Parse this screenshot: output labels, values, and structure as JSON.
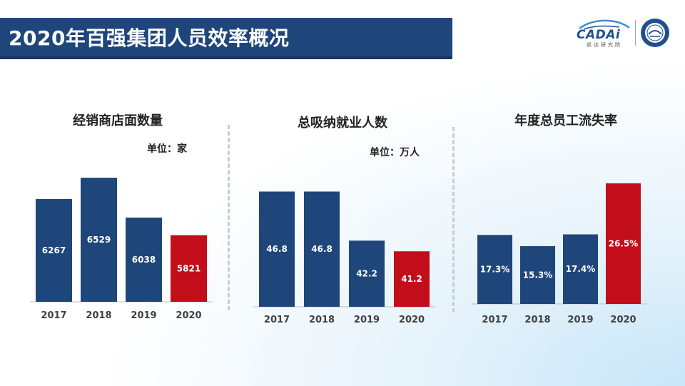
{
  "title": "2020年百强集团人员效率概况",
  "logo": {
    "brand": "CADAi",
    "sub": "凯达研究院"
  },
  "colors": {
    "title_bg": "#1f467a",
    "bar": "#1f467a",
    "bar_highlight": "#c20e1a"
  },
  "chart_data": [
    {
      "type": "bar",
      "title": "经销商店面数量",
      "unit": "单位：家",
      "categories": [
        "2017",
        "2018",
        "2019",
        "2020"
      ],
      "values": [
        6267,
        6529,
        6038,
        5821
      ],
      "labels": [
        "6267",
        "6529",
        "6038",
        "5821"
      ],
      "highlight": "2020",
      "ylim": [
        5000,
        6600
      ]
    },
    {
      "type": "bar",
      "title": "总吸纳就业人数",
      "unit": "单位：万人",
      "categories": [
        "2017",
        "2018",
        "2019",
        "2020"
      ],
      "values": [
        46.8,
        46.8,
        42.2,
        41.2
      ],
      "labels": [
        "46.8",
        "46.8",
        "42.2",
        "41.2"
      ],
      "highlight": "2020",
      "ylim": [
        36,
        47.5
      ]
    },
    {
      "type": "bar",
      "title": "年度总员工流失率",
      "unit": "",
      "categories": [
        "2017",
        "2018",
        "2019",
        "2020"
      ],
      "values": [
        17.3,
        15.3,
        17.4,
        26.5
      ],
      "labels": [
        "17.3%",
        "15.3%",
        "17.4%",
        "26.5%"
      ],
      "highlight": "2020",
      "ylim": [
        5,
        27
      ]
    }
  ]
}
